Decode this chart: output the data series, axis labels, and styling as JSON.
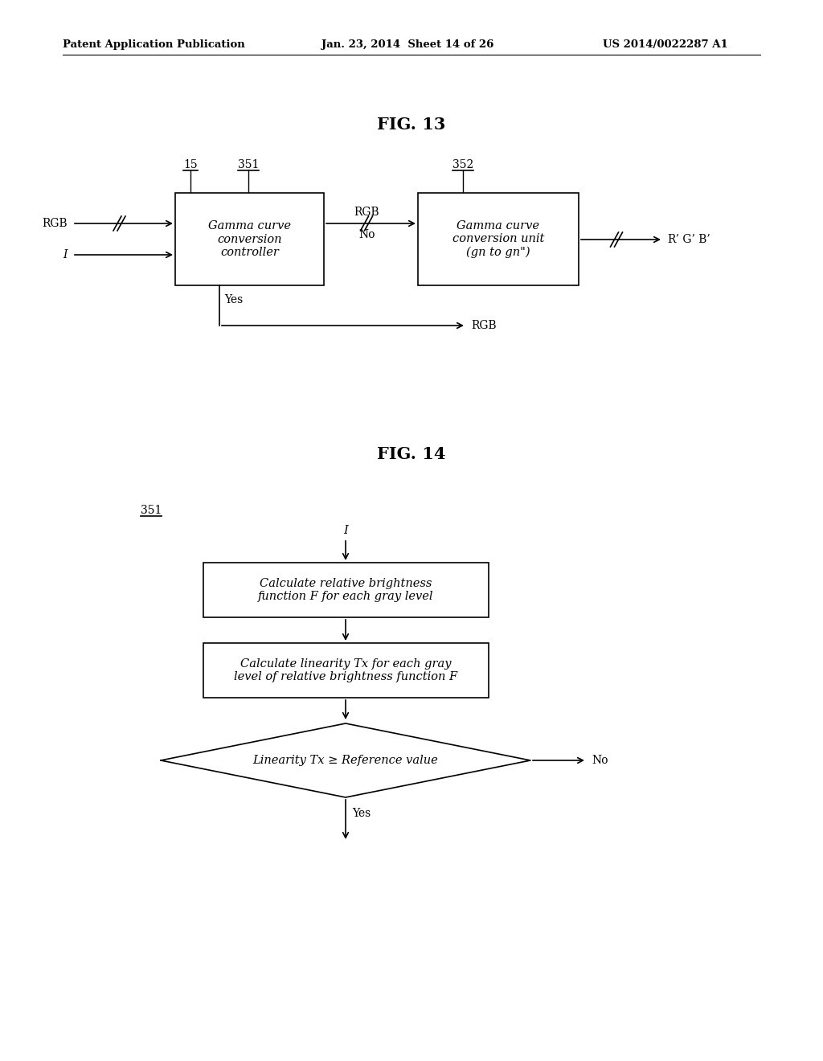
{
  "fig_width": 10.24,
  "fig_height": 13.2,
  "bg_color": "#ffffff",
  "header_left": "Patent Application Publication",
  "header_mid": "Jan. 23, 2014  Sheet 14 of 26",
  "header_right": "US 2014/0022287 A1",
  "fig13_title": "FIG. 13",
  "fig14_title": "FIG. 14",
  "fig13": {
    "label_15": "15",
    "label_351": "351",
    "label_352": "352",
    "box1_text": "Gamma curve\nconversion\ncontroller",
    "box2_text": "Gamma curve\nconversion unit\n(gn to gn\")",
    "input_rgb": "RGB",
    "input_i": "I",
    "arrow_rgb_label": "RGB",
    "arrow_no_label": "No",
    "arrow_yes_label": "Yes",
    "output_rgb_label": "RGB",
    "output_label": "R’ G’ B’"
  },
  "fig14": {
    "label_351": "351",
    "input_i": "I",
    "box1_text": "Calculate relative brightness\nfunction F for each gray level",
    "box2_text": "Calculate linearity Tx for each gray\nlevel of relative brightness function F",
    "diamond_text": "Linearity Tx ≥ Reference value",
    "yes_label": "Yes",
    "no_label": "No"
  }
}
